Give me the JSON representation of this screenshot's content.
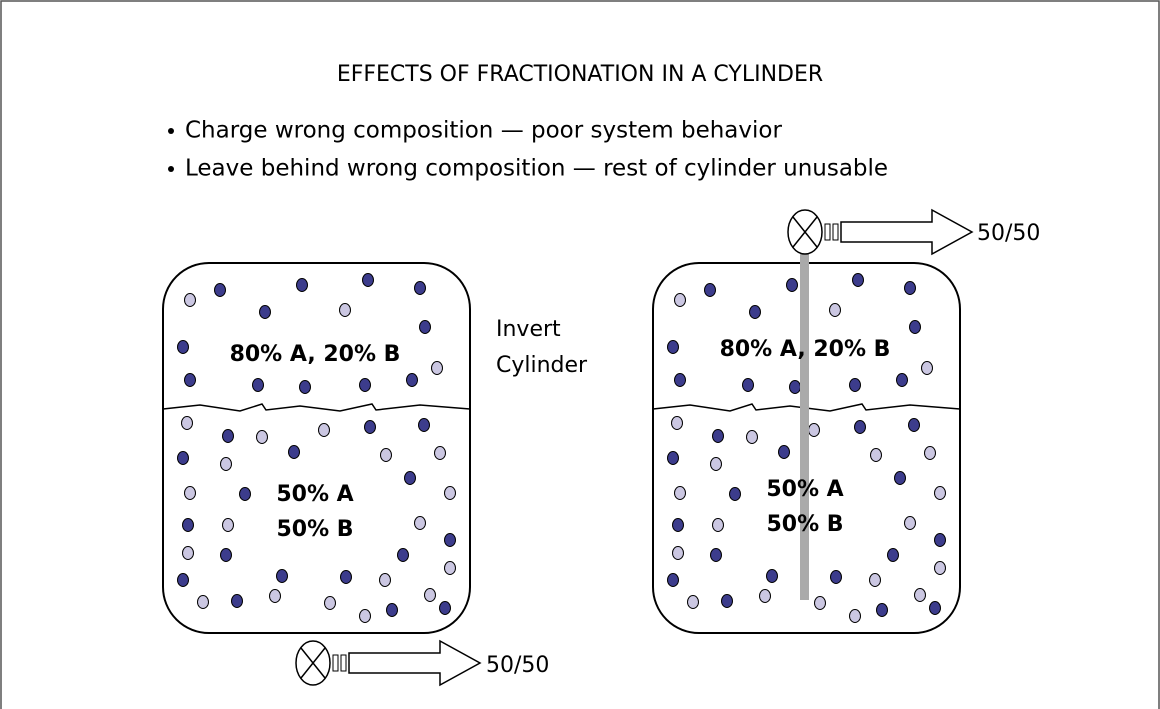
{
  "title": "EFFECTS OF FRACTIONATION IN A CYLINDER",
  "bullets": [
    "Charge wrong composition — poor system behavior",
    "Leave behind wrong composition — rest of cylinder unusable"
  ],
  "instruction": [
    "Invert",
    "Cylinder"
  ],
  "cylinders": [
    {
      "vapor_label": "80% A, 20% B",
      "liquid_label": [
        "50% A",
        "50% B"
      ],
      "outlet_label": "50/50"
    },
    {
      "vapor_label": "80% A, 20% B",
      "liquid_label": [
        "50% A",
        "50% B"
      ],
      "outlet_label": "50/50"
    }
  ]
}
